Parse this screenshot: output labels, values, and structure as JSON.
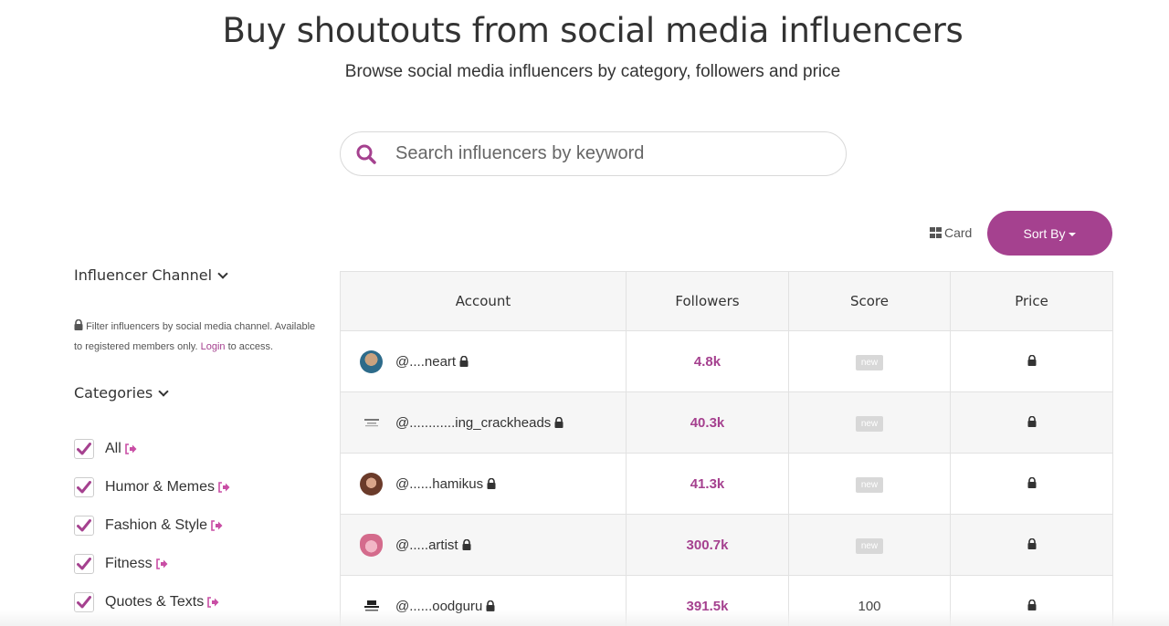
{
  "hero": {
    "title": "Buy shoutouts from social media influencers",
    "subtitle": "Browse social media influencers by category, followers and price"
  },
  "search": {
    "placeholder": "Search influencers by keyword"
  },
  "toolbar": {
    "view_label": "Card",
    "sort_label": "Sort By"
  },
  "sidebar": {
    "channel_heading": "Influencer Channel",
    "filter_note": "Filter influencers by social media channel. Available to registered members only.",
    "login_link": "Login",
    "filter_note_suffix": "to access.",
    "categories_heading": "Categories",
    "categories": [
      {
        "label": "All",
        "checked": true
      },
      {
        "label": "Humor & Memes",
        "checked": true
      },
      {
        "label": "Fashion & Style",
        "checked": true
      },
      {
        "label": "Fitness",
        "checked": true
      },
      {
        "label": "Quotes & Texts",
        "checked": true
      }
    ]
  },
  "table": {
    "headers": [
      "Account",
      "Followers",
      "Score",
      "Price"
    ],
    "rows": [
      {
        "handle": "@....neart",
        "followers": "4.8k",
        "score": "new",
        "avatar_color": "#2d6b8a"
      },
      {
        "handle": "@............ing_crackheads",
        "followers": "40.3k",
        "score": "new",
        "avatar_color": "#eeeeee"
      },
      {
        "handle": "@......hamikus",
        "followers": "41.3k",
        "score": "new",
        "avatar_color": "#6b3b2a"
      },
      {
        "handle": "@.....artist",
        "followers": "300.7k",
        "score": "new",
        "avatar_color": "#d46b8c"
      },
      {
        "handle": "@......oodguru",
        "followers": "391.5k",
        "score": "100",
        "avatar_color": "#222222"
      }
    ]
  },
  "colors": {
    "accent": "#a5418f",
    "badge": "#d8d8d8"
  }
}
